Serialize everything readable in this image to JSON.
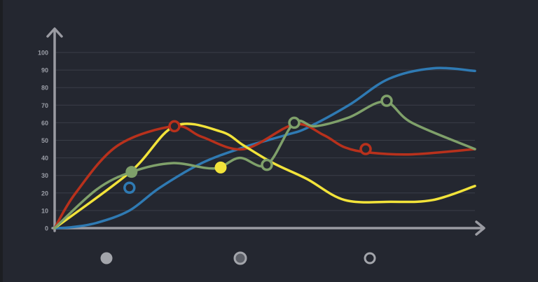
{
  "chart_data": {
    "type": "line",
    "title": "",
    "xlabel": "",
    "ylabel": "",
    "ylim": [
      0,
      100
    ],
    "yticks": [
      0,
      10,
      20,
      30,
      40,
      50,
      60,
      70,
      80,
      90,
      100
    ],
    "grid": true,
    "series": [
      {
        "color": "#2f7ab3",
        "x": [
          0,
          4,
          10,
          17.8,
          25,
          35,
          45,
          55,
          60,
          70,
          79.5,
          90,
          100
        ],
        "values": [
          0,
          0.5,
          3,
          10,
          23,
          37,
          46,
          53,
          57,
          70,
          85,
          91,
          89.5
        ],
        "markers": [
          {
            "x": 17.8,
            "y": 23,
            "style": "ring"
          },
          {
            "x": 79.5,
            "y": 85,
            "style": "none"
          }
        ]
      },
      {
        "color": "#b8311c",
        "x": [
          0,
          5,
          15,
          28.5,
          35,
          45,
          57,
          64,
          69,
          75,
          85,
          100
        ],
        "values": [
          0,
          20,
          47,
          58,
          52,
          45,
          59,
          53,
          46,
          43,
          42,
          45
        ],
        "markers": [
          {
            "x": 28.5,
            "y": 58,
            "style": "ring"
          },
          {
            "x": 74,
            "y": 45,
            "style": "ring"
          }
        ]
      },
      {
        "color": "#f2e33a",
        "x": [
          0,
          18,
          28.5,
          39.5,
          45,
          52,
          60,
          69,
          80,
          90,
          100
        ],
        "values": [
          0,
          32,
          58,
          55,
          47,
          37,
          28,
          16,
          15,
          16,
          24
        ],
        "markers": [
          {
            "x": 39.5,
            "y": 34.5,
            "style": "dot"
          }
        ]
      },
      {
        "color": "#7fa06a",
        "x": [
          0,
          10,
          18.3,
          28,
          38,
          44,
          50.5,
          57,
          62,
          70,
          78.5,
          85,
          100
        ],
        "values": [
          0,
          22,
          32,
          37,
          34,
          40,
          36,
          60,
          58,
          63,
          72,
          60,
          45
        ],
        "markers": [
          {
            "x": 18.3,
            "y": 32,
            "style": "dot"
          },
          {
            "x": 50.5,
            "y": 36,
            "style": "ring"
          },
          {
            "x": 57,
            "y": 60,
            "style": "ring"
          },
          {
            "x": 79,
            "y": 72.5,
            "style": "ring"
          }
        ]
      }
    ],
    "legend": {
      "placement": "bottom",
      "items": [
        {
          "marker": "filled-dot",
          "color": "#a3a5ab"
        },
        {
          "marker": "ringed-dot",
          "color": "#a3a5ab"
        },
        {
          "marker": "ring",
          "color": "#a3a5ab"
        }
      ]
    }
  }
}
